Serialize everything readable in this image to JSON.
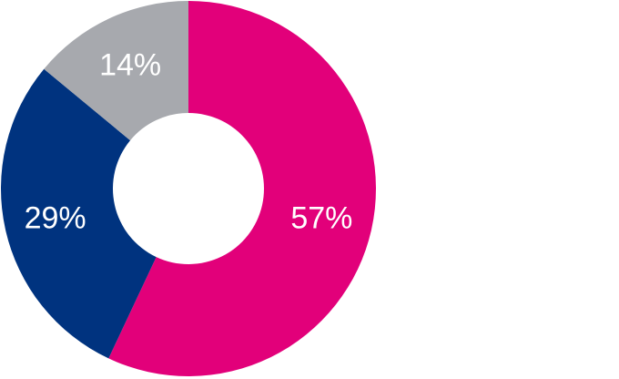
{
  "chart_data": {
    "type": "pie",
    "variant": "donut",
    "slices": [
      {
        "label": "57%",
        "value": 57,
        "color": "#E2007A"
      },
      {
        "label": "29%",
        "value": 29,
        "color": "#00337F"
      },
      {
        "label": "14%",
        "value": 14,
        "color": "#A7A9AE"
      }
    ]
  }
}
